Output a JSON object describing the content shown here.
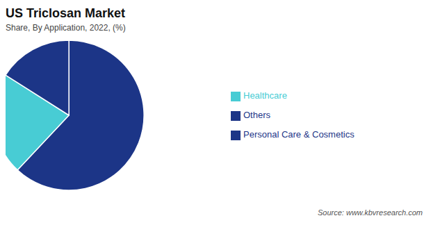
{
  "chart_data": {
    "type": "pie",
    "title": "US Triclosan Market",
    "subtitle": "Share, By Application, 2022, (%)",
    "annotations": [
      "Source: www.kbvresearch.com"
    ],
    "categories": [
      "Personal Care & Cosmetics",
      "Healthcare",
      "Others"
    ],
    "values": [
      62,
      22,
      16
    ],
    "colors": [
      "#1c3587",
      "#48ccd4",
      "#1c3587"
    ],
    "legend": "right"
  }
}
